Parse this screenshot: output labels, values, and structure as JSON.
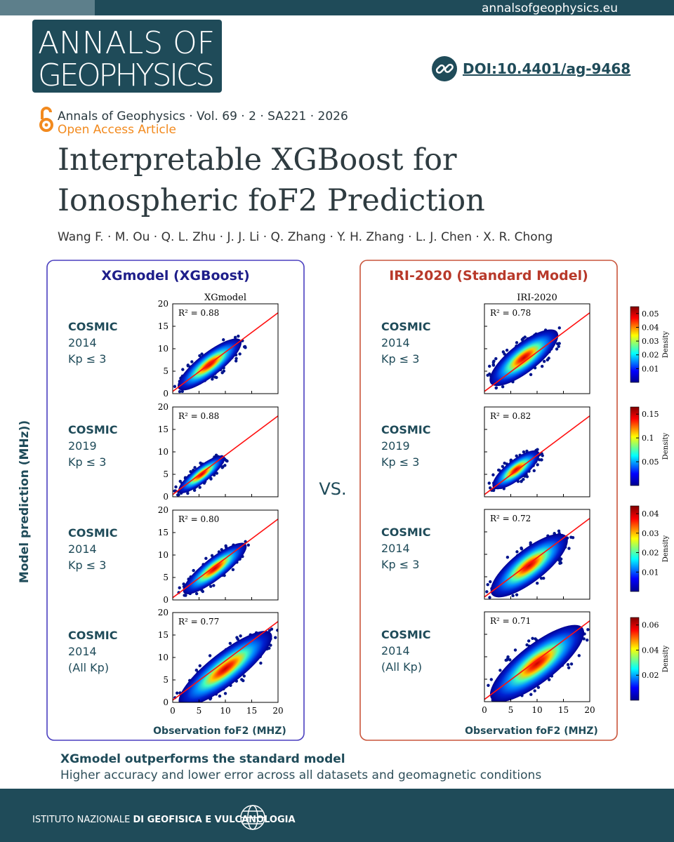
{
  "header": {
    "url": "annalsofgeophysics.eu",
    "journal": [
      "ANNALS OF",
      "GEOPHYSICS"
    ],
    "doi": "DOI:10.4401/ag-9468"
  },
  "citation": {
    "line": "Annals of Geophysics · Vol. 69 · 2 · SA221 · 2026",
    "access": "Open Access Article"
  },
  "title": [
    "Interpretable XGBoost for",
    "Ionospheric foF2 Prediction"
  ],
  "authors": "Wang F. · M. Ou · Q. L. Zhu · J. J. Li · Q. Zhang · Y. H. Zhang · L. J. Chen · X. R. Chong",
  "figure": {
    "y_label": "Model prediction (MHz))",
    "x_label": "Observation foF2 (MHZ)",
    "vs": "VS.",
    "axis_ticks": [
      0,
      5,
      10,
      15,
      20
    ],
    "colorbar_label": "Density",
    "panels": [
      {
        "heading": "XGmodel (XGBoost)",
        "plot_title": "XGmodel",
        "rows": [
          {
            "lines": [
              "COSMIC",
              "2014",
              "Kp ≤ 3"
            ],
            "r2": "R² = 0.88"
          },
          {
            "lines": [
              "COSMIC",
              "2019",
              "Kp ≤ 3"
            ],
            "r2": "R² = 0.88"
          },
          {
            "lines": [
              "COSMIC",
              "2014",
              "Kp ≤ 3"
            ],
            "r2": "R² = 0.80"
          },
          {
            "lines": [
              "COSMIC",
              "2014",
              "(All Kp)"
            ],
            "r2": "R² = 0.77"
          }
        ]
      },
      {
        "heading": "IRI-2020 (Standard Model)",
        "plot_title": "IRI-2020",
        "rows": [
          {
            "lines": [
              "COSMIC",
              "2014",
              "Kp ≤ 3"
            ],
            "r2": "R² = 0.78"
          },
          {
            "lines": [
              "COSMIC",
              "2019",
              "Kp ≤ 3"
            ],
            "r2": "R² = 0.82"
          },
          {
            "lines": [
              "COSMIC",
              "2014",
              "Kp ≤ 3"
            ],
            "r2": "R² = 0.72"
          },
          {
            "lines": [
              "COSMIC",
              "2014",
              "(All Kp)"
            ],
            "r2": "R² = 0.71"
          }
        ]
      }
    ],
    "colorbars": [
      [
        0.05,
        0.04,
        0.03,
        0.02,
        0.01
      ],
      [
        0.15,
        0.1,
        0.05
      ],
      [
        0.04,
        0.03,
        0.02,
        0.01
      ],
      [
        0.06,
        0.04,
        0.02
      ]
    ]
  },
  "summary": {
    "headline": "XGmodel outperforms the standard model",
    "detail": "Higher accuracy and lower error across all datasets and geomagnetic conditions"
  },
  "footer": {
    "institute": [
      "ISTITUTO NAZIONALE",
      "DI GEOFISICA E VULCANOLOGIA"
    ]
  }
}
